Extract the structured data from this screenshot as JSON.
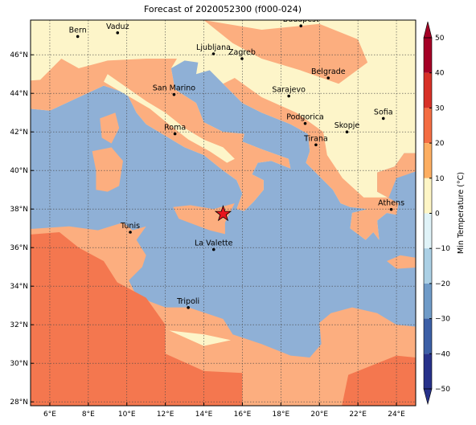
{
  "title": "Forecast of 2020052300 (f000-024)",
  "map": {
    "lon_ticks": [
      {
        "value": 6,
        "label": "6°E"
      },
      {
        "value": 8,
        "label": "8°E"
      },
      {
        "value": 10,
        "label": "10°E"
      },
      {
        "value": 12,
        "label": "12°E"
      },
      {
        "value": 14,
        "label": "14°E"
      },
      {
        "value": 16,
        "label": "16°E"
      },
      {
        "value": 18,
        "label": "18°E"
      },
      {
        "value": 20,
        "label": "20°E"
      },
      {
        "value": 22,
        "label": "22°E"
      },
      {
        "value": 24,
        "label": "24°E"
      }
    ],
    "lat_ticks": [
      {
        "value": 28,
        "label": "28°N"
      },
      {
        "value": 30,
        "label": "30°N"
      },
      {
        "value": 32,
        "label": "32°N"
      },
      {
        "value": 34,
        "label": "34°N"
      },
      {
        "value": 36,
        "label": "36°N"
      },
      {
        "value": 38,
        "label": "38°N"
      },
      {
        "value": 40,
        "label": "40°N"
      },
      {
        "value": 42,
        "label": "42°N"
      },
      {
        "value": 44,
        "label": "44°N"
      },
      {
        "value": 46,
        "label": "46°N"
      }
    ],
    "lonlim": [
      5,
      25
    ],
    "latlim": [
      27.8,
      47.8
    ],
    "grid": true,
    "cities": [
      "Bern",
      "Vaduz",
      "Budapest",
      "Ljubljana",
      "Zagreb",
      "Belgrade",
      "San Marino",
      "Sarajevo",
      "Sofia",
      "Podgorica",
      "Skopje",
      "Roma",
      "Tirana",
      "Athens",
      "Tunis",
      "La Valette",
      "Tripoli"
    ]
  },
  "colorbar": {
    "label": "Min Temperature (°C)",
    "lim": [
      -50,
      50
    ],
    "ticks": [
      50,
      40,
      30,
      20,
      10,
      0,
      {
        "value": -10,
        "label": "−10"
      },
      {
        "value": -20,
        "label": "−20"
      },
      {
        "value": -30,
        "label": "−30"
      },
      {
        "value": -40,
        "label": "−40"
      },
      {
        "value": -50,
        "label": "−50"
      }
    ],
    "colors": [
      "#a50026",
      "#d73027",
      "#f46d43",
      "#fdae61",
      "#fef6c6",
      "#e0f3f8",
      "#abd0e5",
      "#6f9bc8",
      "#3c5fa6",
      "#27318a"
    ]
  }
}
